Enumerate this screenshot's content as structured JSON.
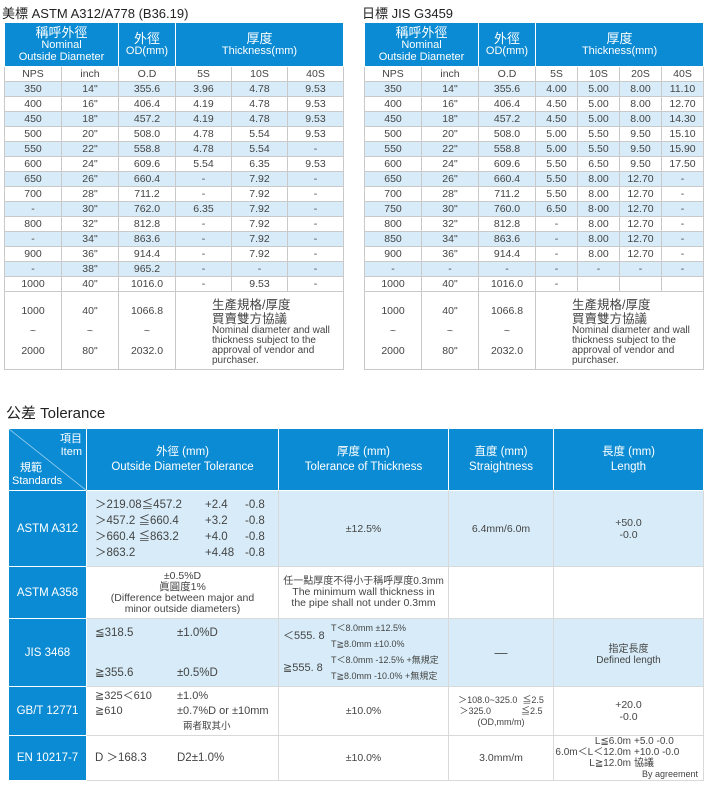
{
  "astm": {
    "title": "美標 ASTM A312/A778 (B36.19)",
    "header": {
      "nom_zh": "稱呼外徑",
      "nom_en1": "Nominal",
      "nom_en2": "Outside Diameter",
      "od_zh": "外徑",
      "od_en": "OD(mm)",
      "th_zh": "厚度",
      "th_en": "Thickness(mm)"
    },
    "sub": [
      "NPS",
      "inch",
      "O.D",
      "5S",
      "10S",
      "40S"
    ],
    "rows": [
      [
        "350",
        "14\"",
        "355.6",
        "3.96",
        "4.78",
        "9.53"
      ],
      [
        "400",
        "16\"",
        "406.4",
        "4.19",
        "4.78",
        "9.53"
      ],
      [
        "450",
        "18\"",
        "457.2",
        "4.19",
        "4.78",
        "9.53"
      ],
      [
        "500",
        "20\"",
        "508.0",
        "4.78",
        "5.54",
        "9.53"
      ],
      [
        "550",
        "22\"",
        "558.8",
        "4.78",
        "5.54",
        "-"
      ],
      [
        "600",
        "24\"",
        "609.6",
        "5.54",
        "6.35",
        "9.53"
      ],
      [
        "650",
        "26\"",
        "660.4",
        "-",
        "7.92",
        "-"
      ],
      [
        "700",
        "28\"",
        "711.2",
        "-",
        "7.92",
        "-"
      ],
      [
        "-",
        "30\"",
        "762.0",
        "6.35",
        "7.92",
        "-"
      ],
      [
        "800",
        "32\"",
        "812.8",
        "-",
        "7.92",
        "-"
      ],
      [
        "-",
        "34\"",
        "863.6",
        "-",
        "7.92",
        "-"
      ],
      [
        "900",
        "36\"",
        "914.4",
        "-",
        "7.92",
        "-"
      ],
      [
        "-",
        "38\"",
        "965.2",
        "-",
        "-",
        "-"
      ],
      [
        "1000",
        "40\"",
        "1016.0",
        "-",
        "9.53",
        "-"
      ]
    ],
    "range": {
      "nps": [
        "1000",
        "~",
        "2000"
      ],
      "inch": [
        "40\"",
        "~",
        "80\""
      ],
      "od": [
        "1066.8",
        "~",
        "2032.0"
      ]
    },
    "note_zh1": "生產規格/厚度",
    "note_zh2": "買賣雙方協議",
    "note_en": "Nominal diameter and wall thickness subject to the approval of vendor and purchaser."
  },
  "jis": {
    "title": "日標  JIS G3459",
    "header": {
      "nom_zh": "稱呼外徑",
      "nom_en1": "Nominal",
      "nom_en2": "Outside Diameter",
      "od_zh": "外徑",
      "od_en": "OD(mm)",
      "th_zh": "厚度",
      "th_en": "Thickness(mm)"
    },
    "sub": [
      "NPS",
      "inch",
      "O.D",
      "5S",
      "10S",
      "20S",
      "40S"
    ],
    "rows": [
      [
        "350",
        "14\"",
        "355.6",
        "4.00",
        "5.00",
        "8.00",
        "11.10"
      ],
      [
        "400",
        "16\"",
        "406.4",
        "4.50",
        "5.00",
        "8.00",
        "12.70"
      ],
      [
        "450",
        "18\"",
        "457.2",
        "4.50",
        "5.00",
        "8.00",
        "14.30"
      ],
      [
        "500",
        "20\"",
        "508.0",
        "5.00",
        "5.50",
        "9.50",
        "15.10"
      ],
      [
        "550",
        "22\"",
        "558.8",
        "5.00",
        "5.50",
        "9.50",
        "15.90"
      ],
      [
        "600",
        "24\"",
        "609.6",
        "5.50",
        "6.50",
        "9.50",
        "17.50"
      ],
      [
        "650",
        "26\"",
        "660.4",
        "5.50",
        "8.00",
        "12.70",
        "-"
      ],
      [
        "700",
        "28\"",
        "711.2",
        "5.50",
        "8.00",
        "12.70",
        "-"
      ],
      [
        "750",
        "30\"",
        "760.0",
        "6.50",
        "8·00",
        "12.70",
        "-"
      ],
      [
        "800",
        "32\"",
        "812.8",
        "-",
        "8.00",
        "12.70",
        "-"
      ],
      [
        "850",
        "34\"",
        "863.6",
        "-",
        "8.00",
        "12.70",
        "-"
      ],
      [
        "900",
        "36\"",
        "914.4",
        "-",
        "8.00",
        "12.70",
        "-"
      ],
      [
        "-",
        "-",
        "-",
        "-",
        "-",
        "-",
        "-"
      ],
      [
        "1000",
        "40\"",
        "1016.0",
        "-",
        "",
        "",
        ""
      ]
    ],
    "range": {
      "nps": [
        "1000",
        "~",
        "2000"
      ],
      "inch": [
        "40\"",
        "~",
        "80\""
      ],
      "od": [
        "1066.8",
        "~",
        "2032.0"
      ]
    },
    "note_zh1": "生產規格/厚度",
    "note_zh2": "買賣雙方協議",
    "note_en": "Nominal diameter and wall thickness subject to the approval of vendor and purchaser."
  },
  "tolerance": {
    "title": "公差 Tolerance",
    "header": {
      "item_zh": "項目",
      "item_en": "Item",
      "std_zh": "規範",
      "std_en": "Standards",
      "od_zh": "外徑 (mm)",
      "od_en": "Outside Diameter Tolerance",
      "th_zh": "厚度 (mm)",
      "th_en": "Tolerance of Thickness",
      "st_zh": "直度 (mm)",
      "st_en": "Straightness",
      "len_zh": "長度 (mm)",
      "len_en": "Length"
    },
    "a312": {
      "std": "ASTM A312",
      "od": [
        [
          "＞219.08≦457.2",
          "+2.4",
          "-0.8"
        ],
        [
          "＞457.2  ≦660.4",
          "+3.2",
          "-0.8"
        ],
        [
          "＞660.4  ≦863.2",
          "+4.0",
          "-0.8"
        ],
        [
          "＞863.2",
          "+4.48",
          "-0.8"
        ]
      ],
      "th": "±12.5%",
      "st": "6.4mm/6.0m",
      "len1": "+50.0",
      "len2": "-0.0"
    },
    "a358": {
      "std": "ASTM A358",
      "od1": "±0.5%D",
      "od2": "眞圓度1%",
      "od3": "(Difference between major and minor outside diameters)",
      "th_zh": "任一點厚度不得小于稱呼厚度0.3mm",
      "th_en": "The minimum wall thickness in the pipe shall not under 0.3mm"
    },
    "jis": {
      "std": "JIS 3468",
      "od": [
        [
          "≦318.5",
          "±1.0%D"
        ],
        [
          "≧355.6",
          "±0.5%D"
        ]
      ],
      "th": [
        {
          "d": "＜555. 8",
          "l1": "T＜8.0mm   ±12.5%",
          "l2": "T≧8.0mm   ±10.0%"
        },
        {
          "d": "≧555. 8",
          "l1": "T＜8.0mm  -12.5% +無規定",
          "l2": "T≧8.0mm  -10.0% +無規定"
        }
      ],
      "st": "—",
      "len_zh": "指定長度",
      "len_en": "Defined length"
    },
    "gb": {
      "std": "GB/T 12771",
      "od": [
        [
          "≧325＜610",
          "±1.0%"
        ],
        [
          "≧610",
          "±0.7%D or ±10mm"
        ]
      ],
      "od_note": "兩者取其小",
      "th": "±10.0%",
      "st1": "＞108.0~325.0  ≦2.5",
      "st2": "＞325.0            ≦2.5",
      "st3": "(OD,mm/m)",
      "len1": "+20.0",
      "len2": "-0.0"
    },
    "en": {
      "std": "EN 10217-7",
      "od1": "D ＞168.3",
      "od2": "D2±1.0%",
      "th": "±10.0%",
      "st": "3.0mm/m",
      "len": [
        [
          "L≦6.0m",
          "+5.0  -0.0"
        ],
        [
          "6.0m＜L＜12.0m",
          "+10.0  -0.0"
        ],
        [
          "L≧12.0m",
          "協議"
        ]
      ],
      "len_note": "By agreement"
    }
  },
  "colors": {
    "header_blue": "#0b8bd3",
    "row_shade": "#d7ecf8"
  }
}
